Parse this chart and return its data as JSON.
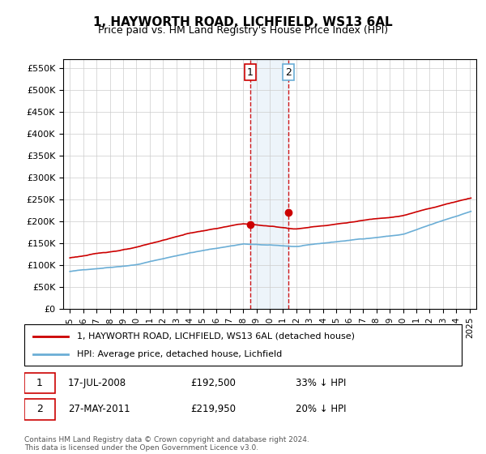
{
  "title": "1, HAYWORTH ROAD, LICHFIELD, WS13 6AL",
  "subtitle": "Price paid vs. HM Land Registry's House Price Index (HPI)",
  "ylabel_ticks": [
    "£0",
    "£50K",
    "£100K",
    "£150K",
    "£200K",
    "£250K",
    "£300K",
    "£350K",
    "£400K",
    "£450K",
    "£500K",
    "£550K"
  ],
  "ytick_values": [
    0,
    50000,
    100000,
    150000,
    200000,
    250000,
    300000,
    350000,
    400000,
    450000,
    500000,
    550000
  ],
  "ylim": [
    0,
    570000
  ],
  "x_start_year": 1995,
  "x_end_year": 2025,
  "xtick_years": [
    1995,
    1996,
    1997,
    1998,
    1999,
    2000,
    2001,
    2002,
    2003,
    2004,
    2005,
    2006,
    2007,
    2008,
    2009,
    2010,
    2011,
    2012,
    2013,
    2014,
    2015,
    2016,
    2017,
    2018,
    2019,
    2020,
    2021,
    2022,
    2023,
    2024,
    2025
  ],
  "legend_line1": "1, HAYWORTH ROAD, LICHFIELD, WS13 6AL (detached house)",
  "legend_line2": "HPI: Average price, detached house, Lichfield",
  "sale1_date": "17-JUL-2008",
  "sale1_price": "£192,500",
  "sale1_hpi": "33% ↓ HPI",
  "sale1_year": 2008.54,
  "sale1_value": 192500,
  "sale2_date": "27-MAY-2011",
  "sale2_price": "£219,950",
  "sale2_hpi": "20% ↓ HPI",
  "sale2_year": 2011.4,
  "sale2_value": 219950,
  "hpi_color": "#6baed6",
  "price_color": "#cc0000",
  "vline_color": "#cc0000",
  "shade_color": "#c6dbef",
  "footer": "Contains HM Land Registry data © Crown copyright and database right 2024.\nThis data is licensed under the Open Government Licence v3.0.",
  "background_color": "#ffffff",
  "grid_color": "#cccccc"
}
